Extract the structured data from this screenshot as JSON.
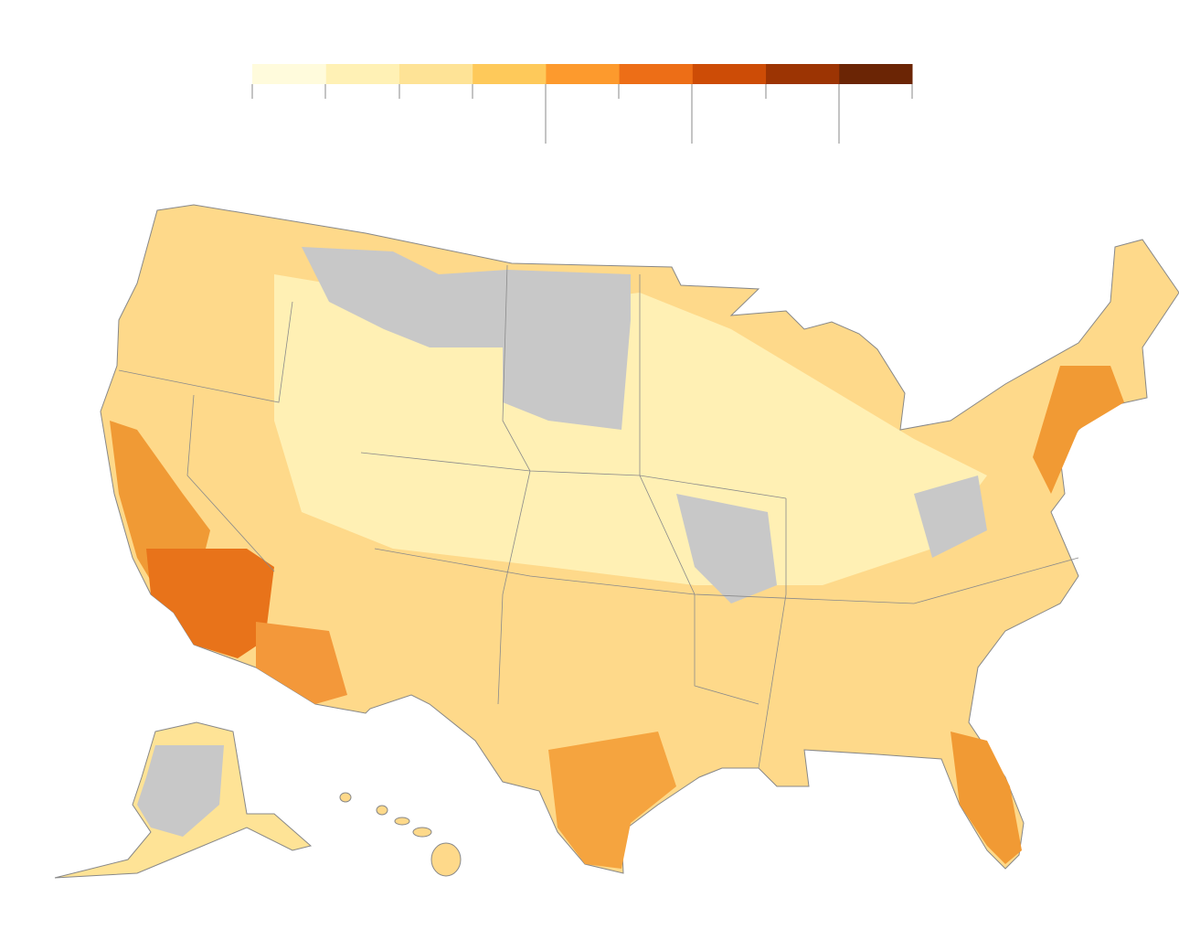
{
  "legend": {
    "colors": [
      "#fffbdc",
      "#fff1b5",
      "#fee396",
      "#fec95a",
      "#fd9a2d",
      "#ed6e17",
      "#cd4c06",
      "#9c3403",
      "#6b2505"
    ]
  }
}
